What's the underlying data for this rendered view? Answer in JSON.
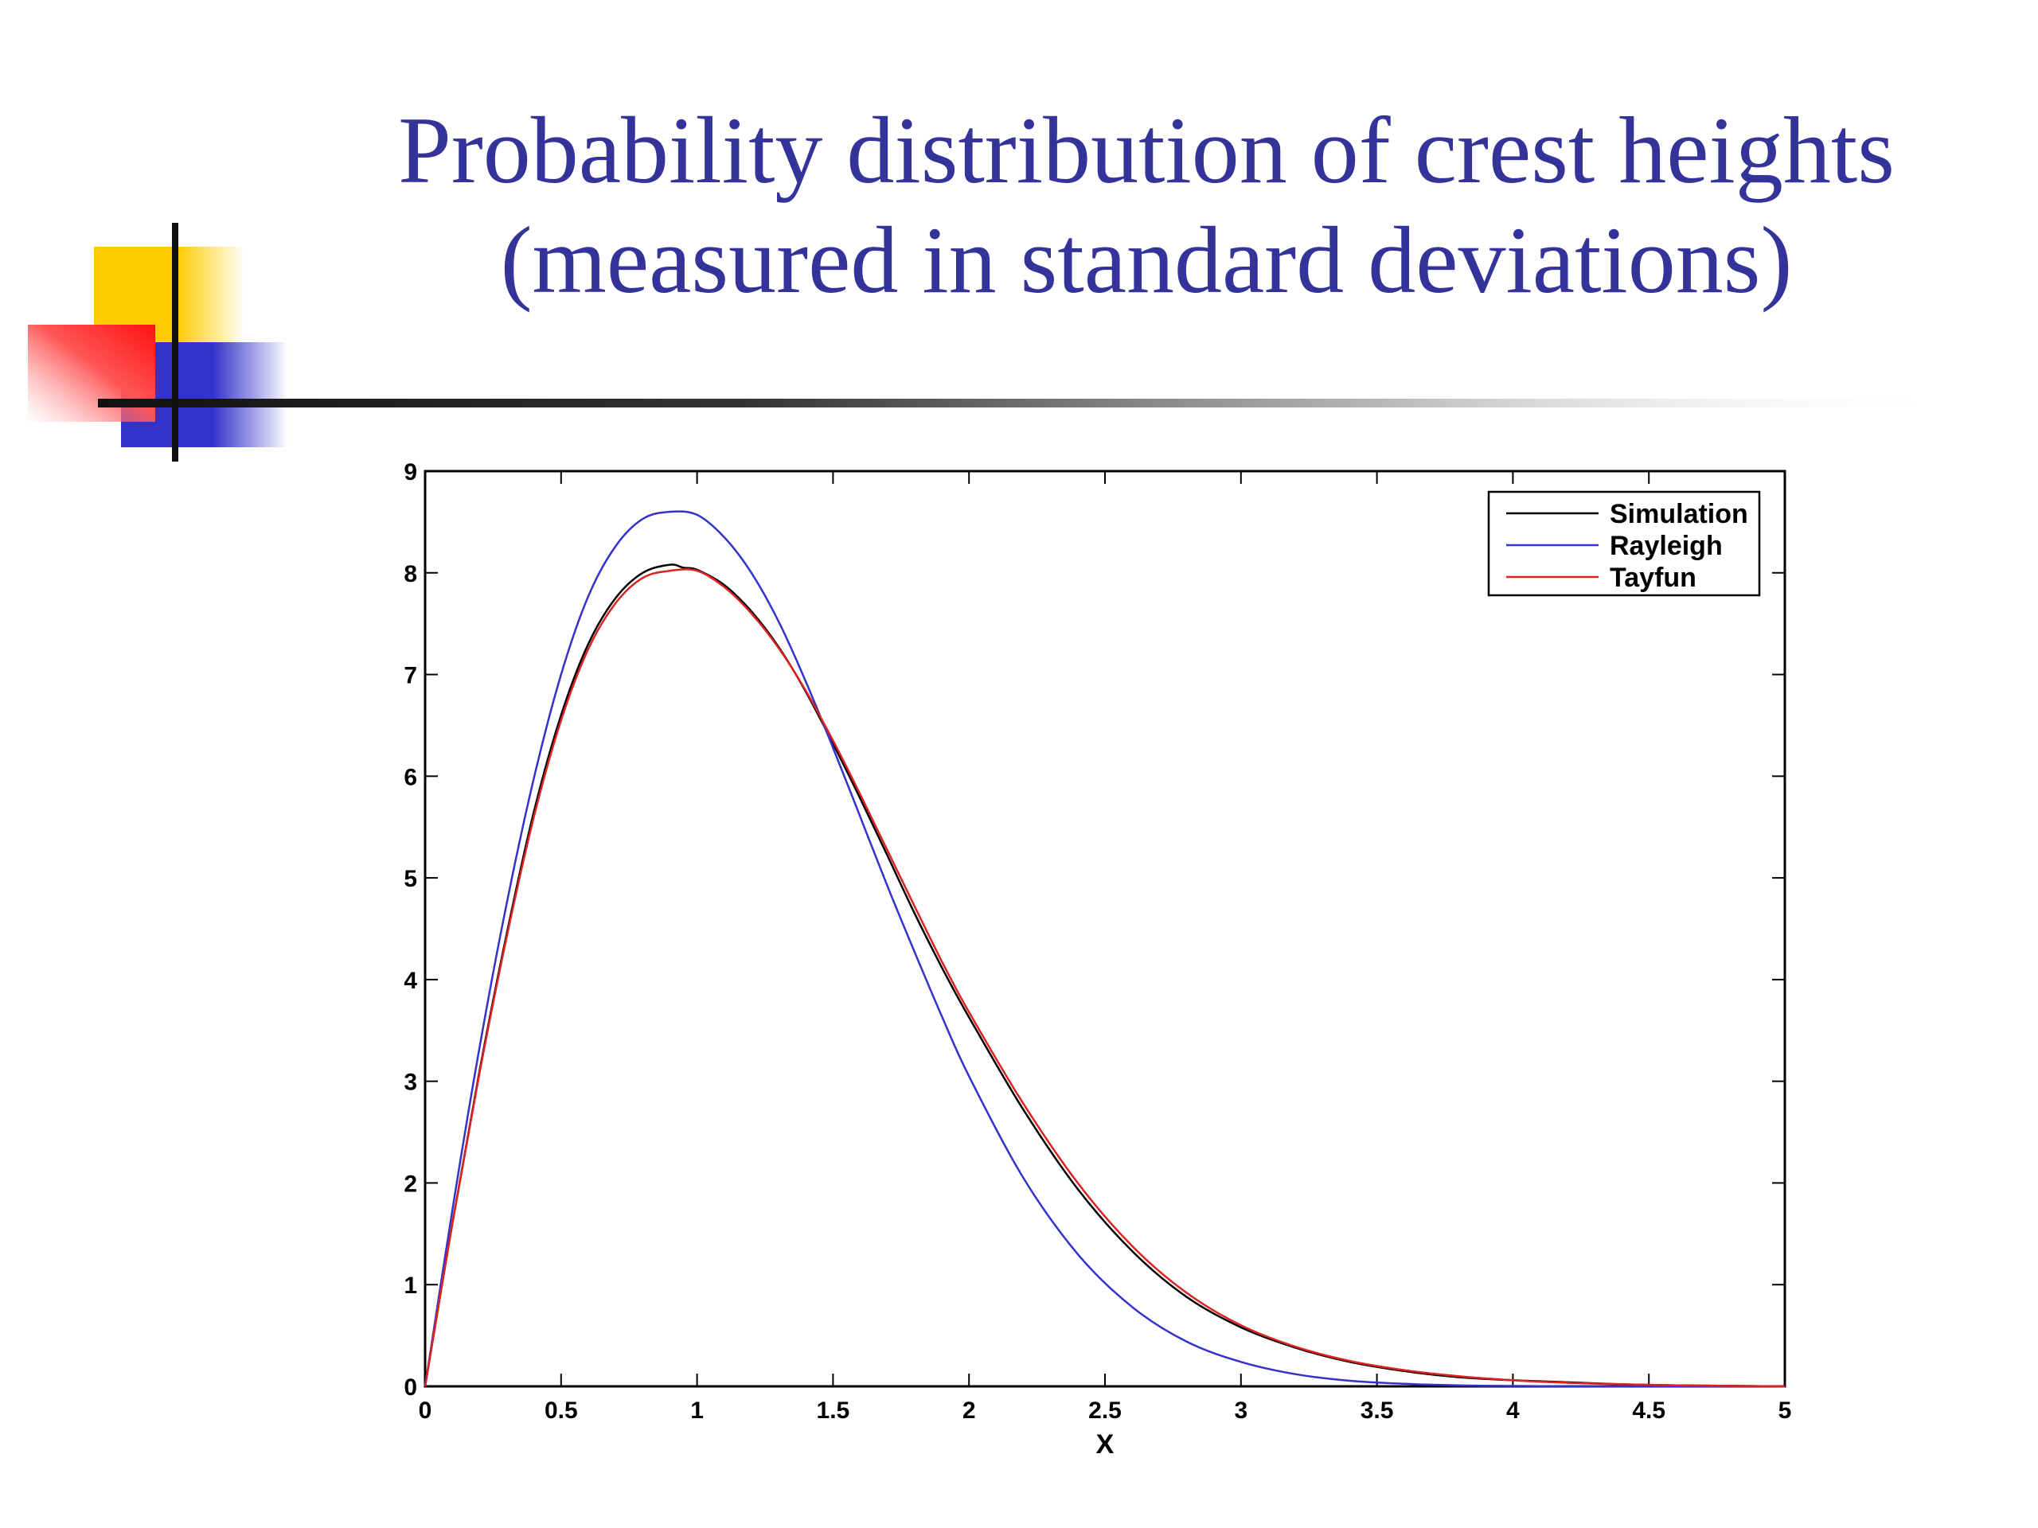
{
  "slide": {
    "title_line1": "Probability distribution of crest heights",
    "title_line2": "(measured in standard deviations)",
    "colors": {
      "title": "#333399",
      "deco_yellow": "#ffcc00",
      "deco_red": "#ff2222",
      "deco_blue": "#3333cc"
    }
  },
  "chart_data": {
    "type": "line",
    "xlabel": "X",
    "ylabel": "",
    "xlim": [
      0,
      5
    ],
    "ylim": [
      0,
      9
    ],
    "xticks": [
      "0",
      "0.5",
      "1",
      "1.5",
      "2",
      "2.5",
      "3",
      "3.5",
      "4",
      "4.5",
      "5"
    ],
    "yticks": [
      "0",
      "1",
      "2",
      "3",
      "4",
      "5",
      "6",
      "7",
      "8",
      "9"
    ],
    "grid": false,
    "legend_position": "top-right",
    "series": [
      {
        "name": "Simulation",
        "color": "#000000",
        "x": [
          0,
          0.1,
          0.2,
          0.3,
          0.4,
          0.5,
          0.6,
          0.7,
          0.8,
          0.9,
          0.95,
          1.0,
          1.1,
          1.2,
          1.3,
          1.4,
          1.5,
          1.6,
          1.7,
          1.8,
          1.9,
          2.0,
          2.2,
          2.4,
          2.6,
          2.8,
          3.0,
          3.2,
          3.4,
          3.6,
          3.8,
          4.0,
          4.2,
          4.4,
          4.6,
          4.8,
          5.0
        ],
        "y": [
          0,
          1.6,
          3.1,
          4.45,
          5.65,
          6.6,
          7.3,
          7.75,
          8.0,
          8.08,
          8.05,
          8.03,
          7.88,
          7.62,
          7.27,
          6.83,
          6.32,
          5.78,
          5.22,
          4.65,
          4.12,
          3.63,
          2.72,
          1.94,
          1.33,
          0.88,
          0.58,
          0.38,
          0.24,
          0.15,
          0.09,
          0.06,
          0.04,
          0.02,
          0.01,
          0.005,
          0
        ]
      },
      {
        "name": "Rayleigh",
        "color": "#3333cc",
        "x": [
          0,
          0.1,
          0.2,
          0.3,
          0.4,
          0.5,
          0.6,
          0.7,
          0.8,
          0.9,
          1.0,
          1.1,
          1.2,
          1.3,
          1.4,
          1.5,
          1.6,
          1.7,
          1.8,
          1.9,
          2.0,
          2.2,
          2.4,
          2.6,
          2.8,
          3.0,
          3.2,
          3.4,
          3.6,
          3.8,
          4.0,
          4.2,
          4.4,
          4.6,
          4.8,
          5.0
        ],
        "y": [
          0,
          1.73,
          3.33,
          4.75,
          5.98,
          7.0,
          7.77,
          8.26,
          8.53,
          8.6,
          8.57,
          8.35,
          8.0,
          7.52,
          6.93,
          6.28,
          5.6,
          4.92,
          4.27,
          3.64,
          3.05,
          2.05,
          1.3,
          0.78,
          0.44,
          0.24,
          0.12,
          0.055,
          0.025,
          0.01,
          0.004,
          0.001,
          0,
          0,
          0,
          0
        ]
      },
      {
        "name": "Tayfun",
        "color": "#dd2222",
        "x": [
          0,
          0.1,
          0.2,
          0.3,
          0.4,
          0.5,
          0.6,
          0.7,
          0.8,
          0.9,
          1.0,
          1.1,
          1.2,
          1.3,
          1.4,
          1.5,
          1.6,
          1.7,
          1.8,
          1.9,
          2.0,
          2.2,
          2.4,
          2.6,
          2.8,
          3.0,
          3.2,
          3.4,
          3.6,
          3.8,
          4.0,
          4.2,
          4.4,
          4.6,
          4.8,
          5.0
        ],
        "y": [
          0,
          1.6,
          3.08,
          4.42,
          5.6,
          6.55,
          7.25,
          7.7,
          7.95,
          8.02,
          8.02,
          7.86,
          7.6,
          7.26,
          6.84,
          6.35,
          5.82,
          5.27,
          4.72,
          4.18,
          3.68,
          2.78,
          2.0,
          1.38,
          0.92,
          0.6,
          0.39,
          0.25,
          0.16,
          0.1,
          0.06,
          0.035,
          0.02,
          0.01,
          0.005,
          0
        ]
      }
    ]
  }
}
